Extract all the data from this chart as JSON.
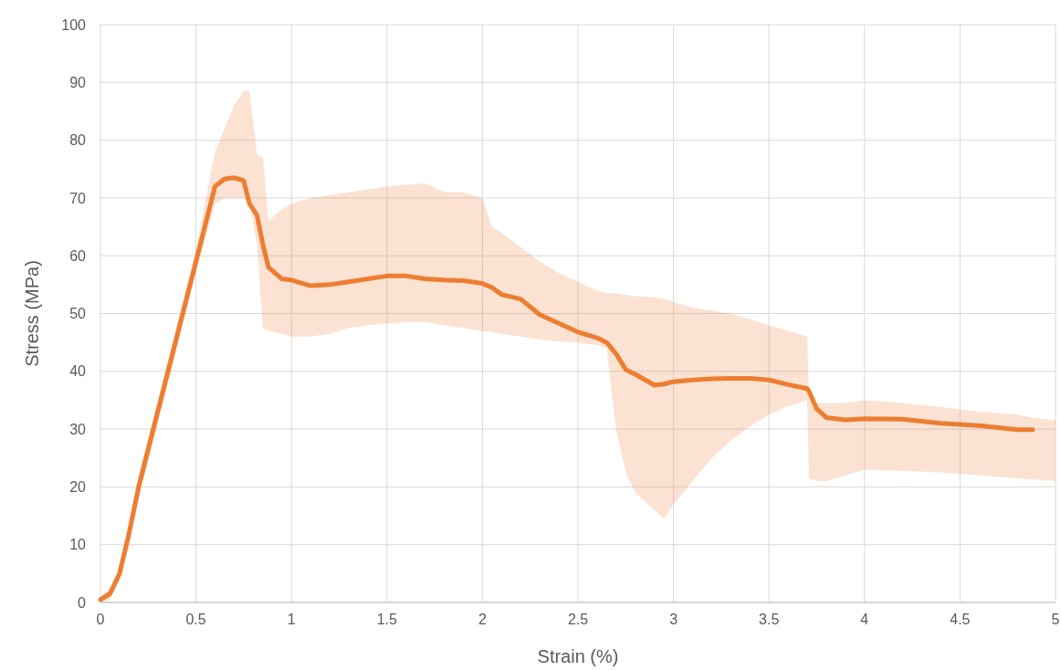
{
  "chart_data": {
    "type": "line",
    "xlabel": "Strain (%)",
    "ylabel": "Stress (MPa)",
    "xlim": [
      0,
      5
    ],
    "ylim": [
      0,
      100
    ],
    "xticks": [
      0,
      0.5,
      1,
      1.5,
      2,
      2.5,
      3,
      3.5,
      4,
      4.5,
      5
    ],
    "yticks": [
      0,
      10,
      20,
      30,
      40,
      50,
      60,
      70,
      80,
      90,
      100
    ],
    "grid": true,
    "marker": "none",
    "line_style": "solid",
    "x": [
      0,
      0.05,
      0.1,
      0.15,
      0.2,
      0.3,
      0.4,
      0.5,
      0.6,
      0.65,
      0.7,
      0.75,
      0.78,
      0.82,
      0.85,
      0.88,
      0.95,
      1.0,
      1.1,
      1.2,
      1.3,
      1.4,
      1.5,
      1.6,
      1.7,
      1.8,
      1.9,
      2.0,
      2.05,
      2.1,
      2.2,
      2.3,
      2.4,
      2.5,
      2.6,
      2.65,
      2.7,
      2.75,
      2.8,
      2.9,
      2.95,
      3.0,
      3.1,
      3.2,
      3.3,
      3.4,
      3.5,
      3.6,
      3.7,
      3.71,
      3.75,
      3.8,
      3.9,
      4.0,
      4.2,
      4.4,
      4.6,
      4.8,
      4.88,
      5.0
    ],
    "series": [
      {
        "color": "#ed7d31",
        "values": [
          0.5,
          1.5,
          5,
          12,
          20,
          33,
          46,
          59,
          72,
          73.3,
          73.5,
          73,
          69,
          67,
          62,
          58,
          56,
          55.8,
          54.8,
          55,
          55.5,
          56,
          56.5,
          56.5,
          56,
          55.8,
          55.7,
          55.2,
          54.5,
          53.3,
          52.5,
          49.8,
          48.3,
          46.8,
          45.8,
          45,
          43,
          40.3,
          39.5,
          37.6,
          37.8,
          38.2,
          38.5,
          38.7,
          38.8,
          38.8,
          38.5,
          37.7,
          37,
          36.5,
          33.5,
          32,
          31.6,
          31.8,
          31.7,
          31,
          30.6,
          29.9,
          29.9,
          null
        ],
        "lower": [
          0,
          0.5,
          4,
          10,
          18,
          31,
          44,
          57,
          69,
          70,
          70,
          70,
          69,
          62,
          47.5,
          47,
          46.5,
          46,
          46,
          46.5,
          47.5,
          48,
          48.3,
          48.5,
          48.5,
          48,
          47.5,
          47,
          46.8,
          46.5,
          46,
          45.5,
          45.2,
          45,
          44.5,
          44,
          30,
          22.5,
          19,
          16,
          14.5,
          17,
          21,
          25,
          28,
          30.5,
          32.5,
          34,
          35,
          21.5,
          21,
          21,
          22,
          23,
          22.8,
          22.5,
          22,
          21.5,
          21.3,
          21
        ],
        "upper": [
          1,
          2.5,
          6,
          14,
          22,
          35,
          48,
          61,
          78,
          82,
          86,
          88.5,
          88.5,
          77.5,
          77,
          66,
          68,
          69,
          70,
          70.5,
          71,
          71.5,
          72,
          72.3,
          72.5,
          71,
          71,
          70,
          65,
          64,
          61.5,
          59,
          57,
          55.5,
          54,
          53.5,
          53.5,
          53.2,
          53,
          52.8,
          52.5,
          52,
          51,
          50.5,
          50,
          49,
          48,
          47,
          46,
          35,
          34.5,
          34.5,
          34.5,
          35,
          34.5,
          33.8,
          33,
          32.5,
          32,
          31.5
        ]
      }
    ]
  }
}
